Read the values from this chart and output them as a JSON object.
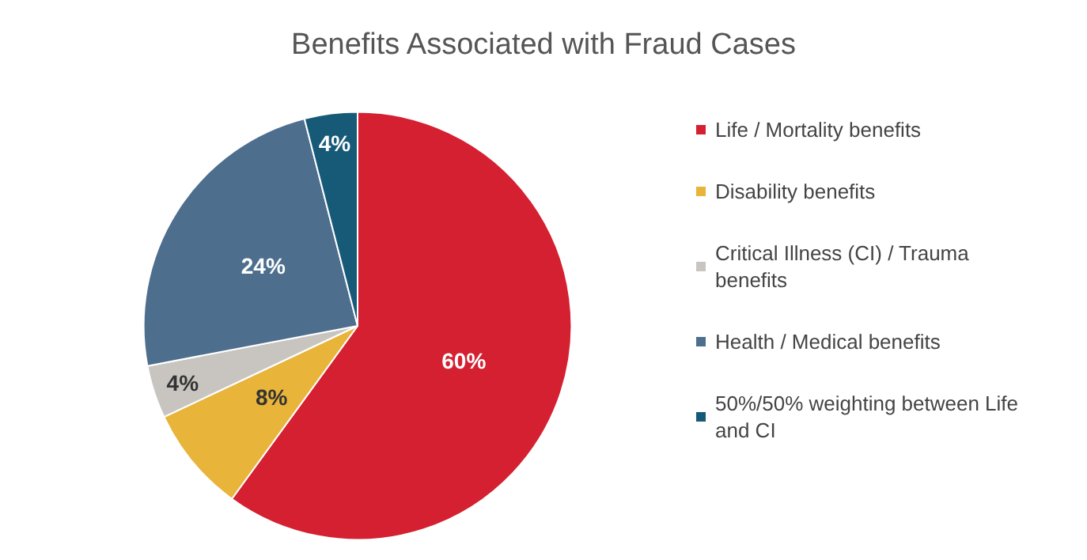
{
  "chart_data": {
    "type": "pie",
    "title": "Benefits Associated with Fraud Cases",
    "categories": [
      "Life / Mortality benefits",
      "Disability benefits",
      "Critical Illness (CI) / Trauma benefits",
      "Health / Medical benefits",
      "50%/50% weighting between Life and CI"
    ],
    "values": [
      60,
      8,
      4,
      24,
      4
    ],
    "colors": [
      "#d42030",
      "#e8b43a",
      "#c8c5c0",
      "#4e6e8e",
      "#175a78"
    ],
    "value_labels": [
      "60%",
      "8%",
      "4%",
      "24%",
      "4%"
    ],
    "legend": "right"
  }
}
